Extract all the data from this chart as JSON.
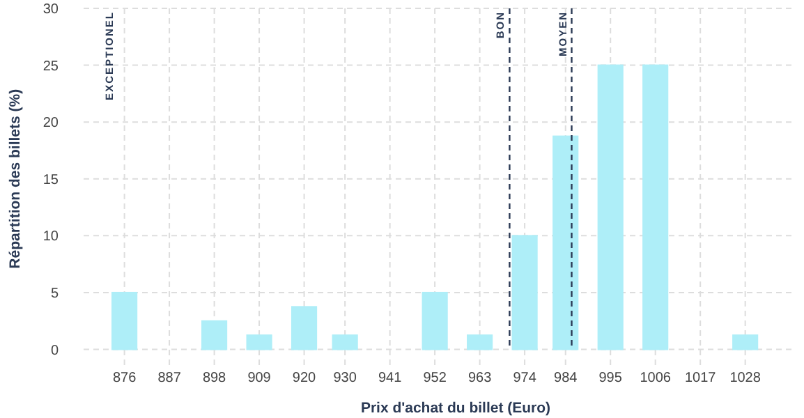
{
  "chart_data": {
    "type": "bar",
    "xlabel": "Prix d'achat du billet (Euro)",
    "ylabel": "Répartition des billets (%)",
    "x": [
      876,
      887,
      898,
      909,
      920,
      930,
      941,
      952,
      963,
      974,
      984,
      995,
      1006,
      1017,
      1028
    ],
    "values": [
      5,
      0,
      2.5,
      1.25,
      3.75,
      1.25,
      0,
      5,
      1.25,
      10,
      18.75,
      25,
      25,
      0,
      1.25
    ],
    "color": "#aeeef8",
    "xlim": [
      866,
      1040
    ],
    "xticks": [
      876,
      887,
      898,
      909,
      920,
      930,
      941,
      952,
      963,
      974,
      984,
      995,
      1006,
      1017,
      1028
    ],
    "ylim": [
      -1.5,
      30
    ],
    "yticks": [
      0,
      5,
      10,
      15,
      20,
      25,
      30
    ],
    "grid": true,
    "ref_lines": [
      {
        "axis": "x",
        "value": 970.3,
        "label": "BON",
        "color": "#2b3a55",
        "line_style": "dashed"
      },
      {
        "axis": "x",
        "value": 985.5,
        "label": "MOYEN",
        "color": "#2b3a55",
        "line_style": "dashed"
      }
    ],
    "annotations": [
      "EXCEPTIONEL"
    ]
  }
}
